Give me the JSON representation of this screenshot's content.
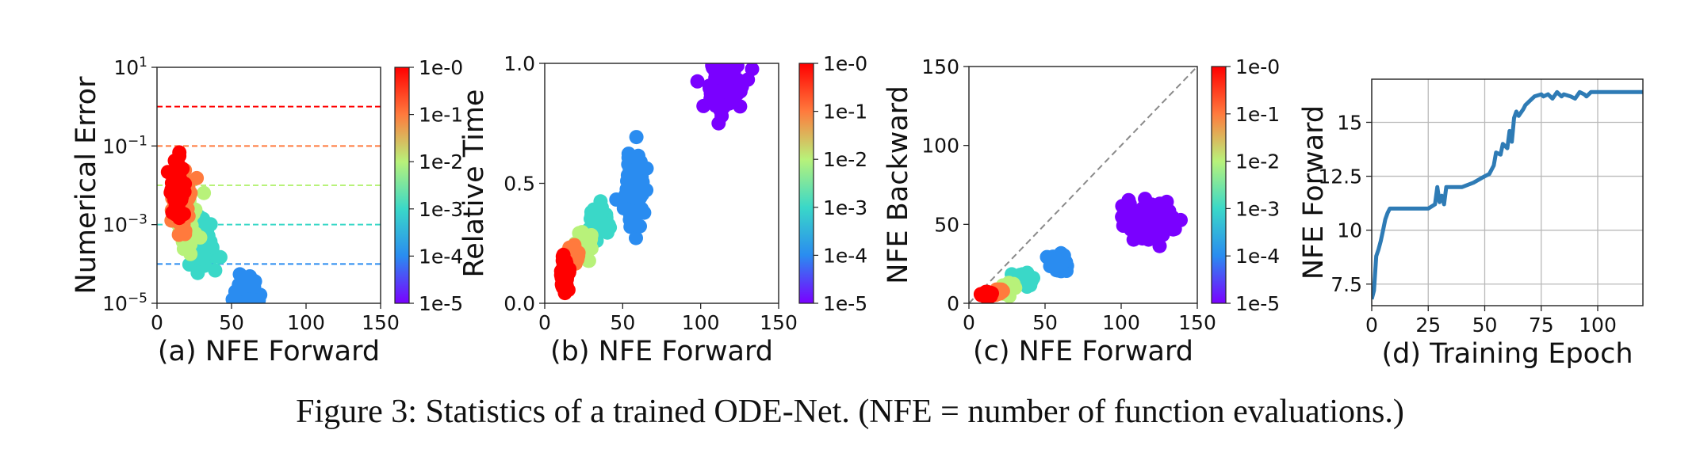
{
  "caption": "Figure 3: Statistics of a trained ODE-Net. (NFE = number of function evaluations.)",
  "colorbar_labels": [
    "1e-0",
    "1e-1",
    "1e-2",
    "1e-3",
    "1e-4",
    "1e-5"
  ],
  "colorbar_scale": [
    "#ff0000",
    "#ff7a3d",
    "#b8f27a",
    "#3ad8c8",
    "#2a8cf0",
    "#7a00ff"
  ],
  "chart_data": [
    {
      "id": "a",
      "type": "scatter",
      "xlabel": "(a) NFE Forward",
      "ylabel": "Numerical Error",
      "xlim": [
        0,
        150
      ],
      "ylim_log10": [
        -5,
        1
      ],
      "yscale": "log",
      "xticks": [
        0,
        50,
        100,
        150
      ],
      "yticks": [
        {
          "v": 1,
          "base": "10",
          "exp": "1"
        },
        {
          "v": -1,
          "base": "10",
          "exp": "−1"
        },
        {
          "v": -3,
          "base": "10",
          "exp": "−3"
        },
        {
          "v": -5,
          "base": "10",
          "exp": "−5"
        }
      ],
      "colorbar": true,
      "dashed_lines": [
        {
          "log10_y": 0,
          "tol_log10": 0
        },
        {
          "log10_y": -1,
          "tol_log10": -1
        },
        {
          "log10_y": -2,
          "tol_log10": -2
        },
        {
          "log10_y": -3,
          "tol_log10": -3
        },
        {
          "log10_y": -4,
          "tol_log10": -4
        }
      ],
      "clusters": [
        {
          "tol_log10": -4,
          "x_mean": 60,
          "x_sd": 3.5,
          "y_mean": -4.8,
          "y_sd": 0.25,
          "y_min": -5,
          "n": 90
        },
        {
          "tol_log10": -3,
          "x_mean": 31,
          "x_sd": 4,
          "y_mean": -3.5,
          "y_sd": 0.3,
          "n": 60
        },
        {
          "tol_log10": -2,
          "x_mean": 20,
          "x_sd": 3,
          "y_mean": -2.9,
          "y_sd": 0.35,
          "n": 60
        },
        {
          "tol_log10": -1,
          "x_mean": 17,
          "x_sd": 3,
          "y_mean": -2.4,
          "y_sd": 0.4,
          "n": 60
        },
        {
          "tol_log10": 0,
          "x_mean": 14,
          "x_sd": 2,
          "y_mean": -2.1,
          "y_sd": 0.35,
          "n": 60
        }
      ]
    },
    {
      "id": "b",
      "type": "scatter",
      "xlabel": "(b) NFE Forward",
      "ylabel": "Relative Time",
      "xlim": [
        0,
        150
      ],
      "ylim": [
        0,
        1
      ],
      "xticks": [
        0,
        50,
        100,
        150
      ],
      "yticks": [
        0.0,
        0.5,
        1.0
      ],
      "colorbar": true,
      "clusters": [
        {
          "tol_log10": -5,
          "x_mean": 115,
          "x_sd": 6,
          "y_mean": 0.9,
          "y_sd": 0.05,
          "y_max": 1,
          "n": 100
        },
        {
          "tol_log10": -4,
          "x_mean": 58,
          "x_sd": 3,
          "y_mean": 0.5,
          "y_sd": 0.08,
          "n": 90
        },
        {
          "tol_log10": -3,
          "x_mean": 35,
          "x_sd": 3,
          "y_mean": 0.33,
          "y_sd": 0.03,
          "n": 50
        },
        {
          "tol_log10": -2,
          "x_mean": 25,
          "x_sd": 3,
          "y_mean": 0.24,
          "y_sd": 0.03,
          "n": 50
        },
        {
          "tol_log10": -1,
          "x_mean": 19,
          "x_sd": 2,
          "y_mean": 0.2,
          "y_sd": 0.02,
          "n": 40
        },
        {
          "tol_log10": 0,
          "x_mean": 13,
          "x_sd": 1.5,
          "y_mean": 0.13,
          "y_sd": 0.03,
          "n": 50
        }
      ]
    },
    {
      "id": "c",
      "type": "scatter",
      "xlabel": "(c) NFE Forward",
      "ylabel": "NFE Backward",
      "xlim": [
        0,
        150
      ],
      "ylim": [
        0,
        150
      ],
      "xticks": [
        0,
        50,
        100,
        150
      ],
      "yticks": [
        0,
        50,
        100,
        150
      ],
      "colorbar": true,
      "diagonal": true,
      "clusters": [
        {
          "tol_log10": -5,
          "x_mean": 118,
          "x_sd": 9,
          "y_mean": 52,
          "y_sd": 6,
          "n": 110
        },
        {
          "tol_log10": -4,
          "x_mean": 58,
          "x_sd": 3,
          "y_mean": 26,
          "y_sd": 2.5,
          "n": 80
        },
        {
          "tol_log10": -3,
          "x_mean": 36,
          "x_sd": 3,
          "y_mean": 15,
          "y_sd": 2,
          "n": 50
        },
        {
          "tol_log10": -2,
          "x_mean": 26,
          "x_sd": 2,
          "y_mean": 9,
          "y_sd": 1.5,
          "n": 40
        },
        {
          "tol_log10": -1,
          "x_mean": 19,
          "x_sd": 1.5,
          "y_mean": 7,
          "y_sd": 1,
          "n": 30
        },
        {
          "tol_log10": 0,
          "x_mean": 12,
          "x_sd": 1.5,
          "y_mean": 6,
          "y_sd": 1,
          "n": 40
        }
      ]
    },
    {
      "id": "d",
      "type": "line",
      "xlabel": "(d) Training Epoch",
      "ylabel": "NFE Forward",
      "xlim": [
        0,
        120
      ],
      "ylim": [
        6.5,
        17
      ],
      "xticks": [
        0,
        25,
        50,
        75,
        100
      ],
      "yticks": [
        7.5,
        10.0,
        12.5,
        15.0
      ],
      "grid": true,
      "color": "#2e7bb5",
      "x": [
        0,
        1,
        2,
        3,
        4,
        5,
        6,
        7,
        8,
        10,
        12,
        15,
        20,
        25,
        28,
        29,
        30,
        31,
        32,
        33,
        34,
        35,
        40,
        45,
        50,
        52,
        54,
        55,
        57,
        58,
        60,
        61,
        62,
        63,
        64,
        65,
        67,
        68,
        70,
        72,
        75,
        76,
        78,
        80,
        82,
        84,
        85,
        88,
        90,
        92,
        94,
        95,
        97,
        100,
        105,
        110,
        115,
        120
      ],
      "y": [
        6.8,
        7.2,
        8.8,
        9.1,
        9.5,
        10.0,
        10.5,
        10.8,
        11.0,
        11.0,
        11.0,
        11.0,
        11.0,
        11.0,
        11.2,
        12.0,
        11.3,
        11.6,
        11.2,
        12.0,
        12.0,
        12.0,
        12.0,
        12.2,
        12.5,
        12.6,
        13.0,
        13.6,
        13.5,
        14.0,
        13.8,
        14.6,
        14.1,
        15.2,
        15.5,
        15.3,
        15.6,
        15.8,
        16.0,
        16.2,
        16.3,
        16.2,
        16.3,
        16.1,
        16.4,
        16.2,
        16.3,
        16.2,
        16.1,
        16.4,
        16.3,
        16.2,
        16.4,
        16.4,
        16.4,
        16.4,
        16.4,
        16.4
      ]
    }
  ]
}
